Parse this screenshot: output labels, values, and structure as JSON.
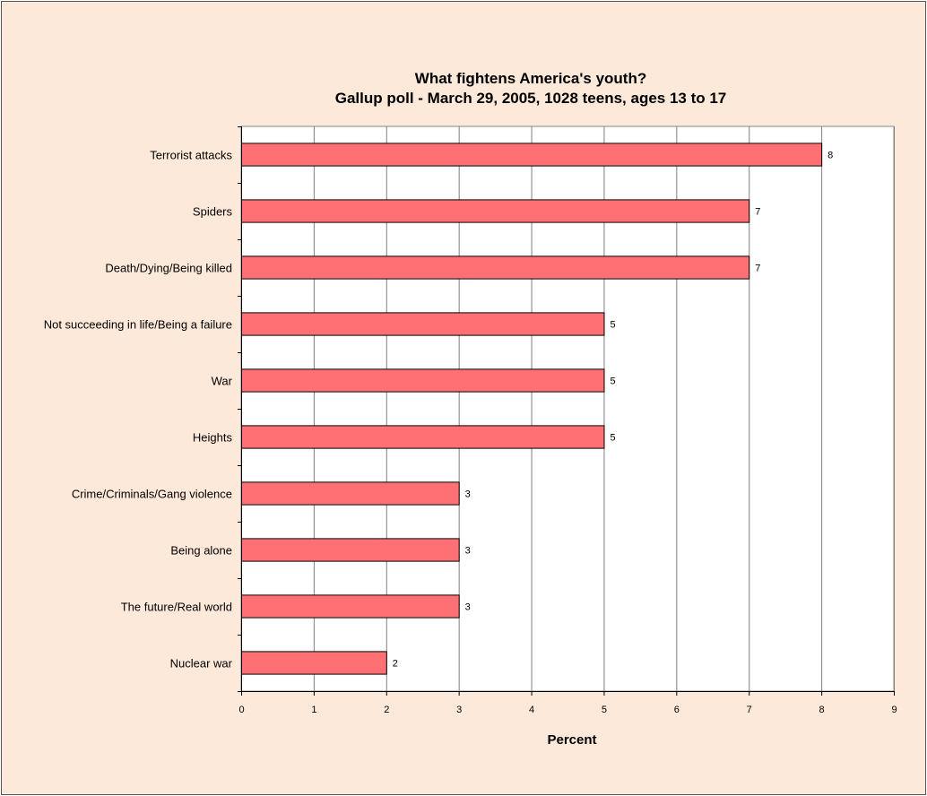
{
  "chart_data": {
    "type": "bar",
    "orientation": "horizontal",
    "title": [
      "What fightens America's youth?",
      "Gallup poll - March 29, 2005, 1028 teens, ages 13 to 17"
    ],
    "xlabel": "Percent",
    "ylabel": "",
    "xlim": [
      0,
      9
    ],
    "xticks": [
      0,
      1,
      2,
      3,
      4,
      5,
      6,
      7,
      8,
      9
    ],
    "grid": true,
    "bar_color": "#ff7074",
    "plot_background": "#ffffff",
    "chart_background": "#fde9d9",
    "categories": [
      "Terrorist attacks",
      "Spiders",
      "Death/Dying/Being killed",
      "Not succeeding in life/Being a failure",
      "War",
      "Heights",
      "Crime/Criminals/Gang violence",
      "Being alone",
      "The future/Real world",
      "Nuclear war"
    ],
    "values": [
      8,
      7,
      7,
      5,
      5,
      5,
      3,
      3,
      3,
      2
    ],
    "data_labels": true
  }
}
